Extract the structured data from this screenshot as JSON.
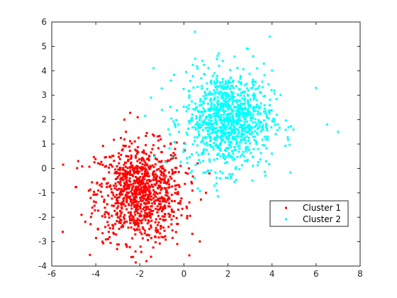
{
  "chart_data": {
    "type": "scatter",
    "title": "",
    "xlabel": "",
    "ylabel": "",
    "xlim": [
      -6,
      8
    ],
    "ylim": [
      -4,
      6
    ],
    "xticks": [
      -6,
      -4,
      -2,
      0,
      2,
      4,
      6,
      8
    ],
    "yticks": [
      -4,
      -3,
      -2,
      -1,
      0,
      1,
      2,
      3,
      4,
      5,
      6
    ],
    "grid": false,
    "box": true,
    "legend_position": "lower-right",
    "series": [
      {
        "name": "Cluster 1",
        "color": "#ff0000",
        "marker": "dot",
        "distribution": {
          "n": 1000,
          "mean": [
            -2,
            -1
          ],
          "std": [
            1.0,
            1.0
          ]
        },
        "points_sample": [
          [
            -2,
            -1
          ],
          [
            -2.2,
            -1.3
          ],
          [
            -1.8,
            -0.8
          ],
          [
            -2.5,
            -1.5
          ],
          [
            -1.5,
            -0.5
          ],
          [
            -3,
            -2
          ],
          [
            -1,
            0
          ],
          [
            -2.7,
            -0.6
          ],
          [
            -1.2,
            -1.8
          ],
          [
            -3.2,
            -1.1
          ],
          [
            -4.8,
            0.3
          ],
          [
            -5.5,
            -2.6
          ],
          [
            -1.7,
            -3.8
          ],
          [
            -2.7,
            2.0
          ],
          [
            -2.1,
            2.1
          ],
          [
            -0.3,
            -3.1
          ],
          [
            1.0,
            -1.0
          ],
          [
            -0.6,
            1.0
          ],
          [
            -3.7,
            -3.0
          ],
          [
            -2.2,
            -3.4
          ]
        ]
      },
      {
        "name": "Cluster 2",
        "color": "#00ffff",
        "marker": "dot",
        "distribution": {
          "n": 1000,
          "mean": [
            2,
            2
          ],
          "std": [
            1.0,
            1.0
          ]
        },
        "points_sample": [
          [
            2,
            2
          ],
          [
            1.5,
            2.5
          ],
          [
            2.5,
            1.5
          ],
          [
            3,
            2.2
          ],
          [
            1,
            1.8
          ],
          [
            2.2,
            3
          ],
          [
            2.8,
            0.8
          ],
          [
            1.7,
            1.2
          ],
          [
            3.3,
            2.8
          ],
          [
            0.8,
            2.6
          ],
          [
            0.5,
            5.6
          ],
          [
            3.9,
            5.4
          ],
          [
            6.5,
            1.8
          ],
          [
            7.0,
            1.5
          ],
          [
            -1.5,
            2.9
          ],
          [
            1.5,
            -0.9
          ],
          [
            3.7,
            -0.3
          ],
          [
            -0.7,
            1.6
          ],
          [
            6.0,
            3.3
          ],
          [
            2.9,
            4.9
          ]
        ]
      }
    ]
  }
}
